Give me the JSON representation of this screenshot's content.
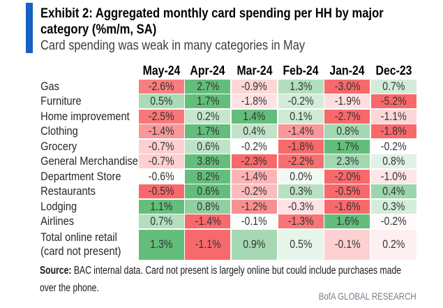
{
  "page": {
    "background_color": "#FFFFFF",
    "accent_bar_color": "#1661C3"
  },
  "header": {
    "title_line1": "Exhibit 2: Aggregated monthly card spending per HH by major",
    "title_line2": "category (%m/m, SA)",
    "subtitle": "Card spending was weak in many categories in May"
  },
  "chart_data": {
    "type": "heatmap",
    "title": "Exhibit 2: Aggregated monthly card spending per HH by major category (%m/m, SA)",
    "subtitle": "Card spending was weak in many categories in May",
    "unit": "% m/m, seasonally adjusted",
    "columns": [
      "May-24",
      "Apr-24",
      "Mar-24",
      "Feb-24",
      "Jan-24",
      "Dec-23"
    ],
    "rows": [
      {
        "label": "Gas",
        "values": [
          -2.6,
          2.7,
          -0.9,
          1.3,
          -3.0,
          0.7
        ]
      },
      {
        "label": "Furniture",
        "values": [
          0.5,
          1.7,
          -1.8,
          -0.2,
          -1.9,
          -5.2
        ]
      },
      {
        "label": "Home improvement",
        "values": [
          -2.5,
          0.2,
          1.4,
          0.1,
          -2.7,
          -1.1
        ]
      },
      {
        "label": "Clothing",
        "values": [
          -1.4,
          1.7,
          0.4,
          -1.4,
          0.8,
          -1.8
        ]
      },
      {
        "label": "Grocery",
        "values": [
          -0.7,
          0.6,
          -0.2,
          -1.8,
          1.7,
          -0.2
        ]
      },
      {
        "label": "General Merchandise",
        "values": [
          -0.7,
          3.8,
          -2.3,
          -2.2,
          2.3,
          0.8
        ]
      },
      {
        "label": "Department Store",
        "values": [
          -0.6,
          8.2,
          -1.4,
          0.0,
          -2.0,
          -1.0
        ]
      },
      {
        "label": "Restaurants",
        "values": [
          -0.5,
          0.6,
          -0.2,
          0.3,
          -0.5,
          0.4
        ]
      },
      {
        "label": "Lodging",
        "values": [
          1.1,
          0.8,
          -1.2,
          -0.3,
          -1.6,
          0.3
        ]
      },
      {
        "label": "Airlines",
        "values": [
          0.7,
          -1.4,
          -0.1,
          -1.3,
          1.6,
          -0.2
        ]
      },
      {
        "label": "Total online retail\n(card not present)",
        "values": [
          1.3,
          -1.1,
          0.9,
          0.5,
          -0.1,
          0.2
        ]
      }
    ],
    "value_format": "one_decimal_percent",
    "color_scale": {
      "mode": "per_row_3_color",
      "midpoint": "row_median",
      "min_color": "#F8696B",
      "mid_color": "#FFFFFF",
      "max_color": "#63BE7B"
    },
    "legend_position": "none",
    "grid": false
  },
  "footer": {
    "source_label": "Source:",
    "source_text": " BAC internal data. Card not present is largely online but could include purchases made over the phone.",
    "brand": "BofA GLOBAL RESEARCH",
    "brand_color": "#747D89"
  }
}
